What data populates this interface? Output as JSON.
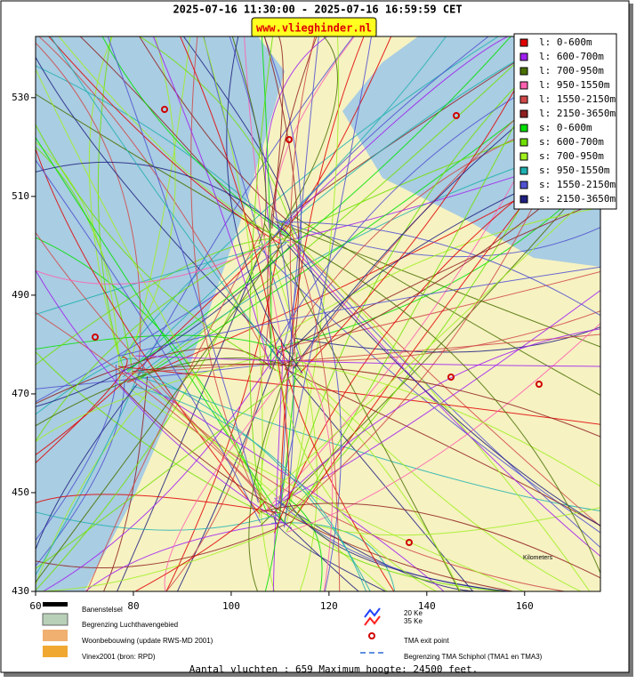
{
  "header": {
    "title": "2025-07-16 11:30:00 - 2025-07-16 16:59:59 CET",
    "link": "www.vlieghinder.nl"
  },
  "chart_data": {
    "type": "map",
    "xlim": [
      60,
      175.5
    ],
    "ylim": [
      430,
      542.4
    ],
    "xticks": [
      60,
      80,
      100,
      120,
      140,
      160
    ],
    "yticks": [
      430,
      450,
      470,
      490,
      510,
      530
    ],
    "series": [
      {
        "name": "l: 0-600m",
        "color": "#e00000"
      },
      {
        "name": "l: 600-700m",
        "color": "#a020f0"
      },
      {
        "name": "l: 700-950m",
        "color": "#4a7000"
      },
      {
        "name": "l: 950-1550m",
        "color": "#ff60b0"
      },
      {
        "name": "l: 1550-2150m",
        "color": "#d04848"
      },
      {
        "name": "l: 2150-3650m",
        "color": "#902020"
      },
      {
        "name": "s: 0-600m",
        "color": "#00e000"
      },
      {
        "name": "s: 600-700m",
        "color": "#70e000"
      },
      {
        "name": "s: 700-950m",
        "color": "#a0f020"
      },
      {
        "name": "s: 950-1550m",
        "color": "#20b0b0"
      },
      {
        "name": "s: 1550-2150m",
        "color": "#5050d0"
      },
      {
        "name": "s: 2150-3650m",
        "color": "#202080"
      }
    ]
  },
  "map_legend": {
    "runways": "Banenstelsel",
    "airport_boundary": "Begrenzing Luchthavengebied",
    "housing": "Woonbebouwing (update RWS-MD 2001)",
    "vinex": "Vinex2001 (bron: RPD)",
    "ke20": "20 Ke",
    "ke35": "35 Ke",
    "tma_exit": "TMA exit point",
    "tma_boundary": "Begrenzing TMA Schiphol  (TMA1 en TMA3)",
    "scale": "Kilometers"
  },
  "footer": "Aantal vluchten : 659 Maximum hoogte: 24500 feet."
}
